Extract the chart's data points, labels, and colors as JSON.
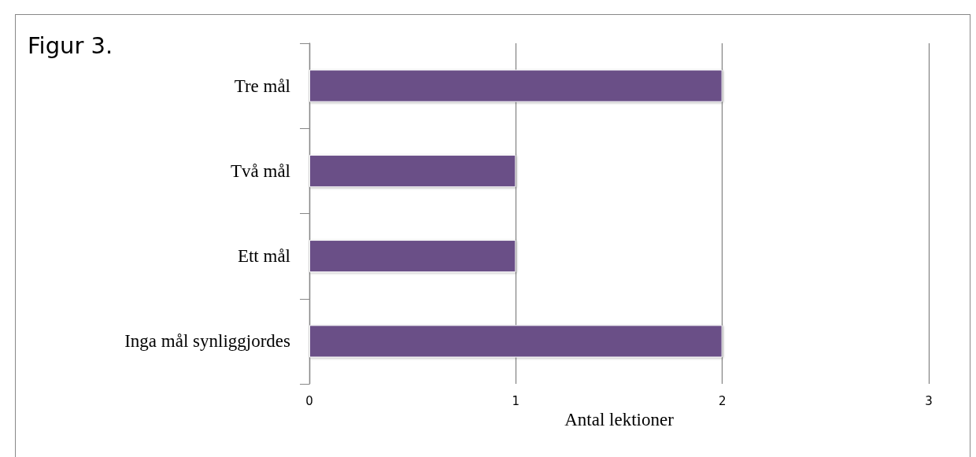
{
  "chart_data": {
    "type": "bar",
    "orientation": "horizontal",
    "title": "Figur 3.",
    "xlabel": "Antal lektioner",
    "categories": [
      "Tre mål",
      "Två mål",
      "Ett mål",
      "Inga mål synliggjordes"
    ],
    "values": [
      2,
      1,
      1,
      2
    ],
    "color": "#6a5087",
    "xlim": [
      0,
      3
    ],
    "xticks": [
      0,
      1,
      2,
      3
    ],
    "grid": "x"
  }
}
